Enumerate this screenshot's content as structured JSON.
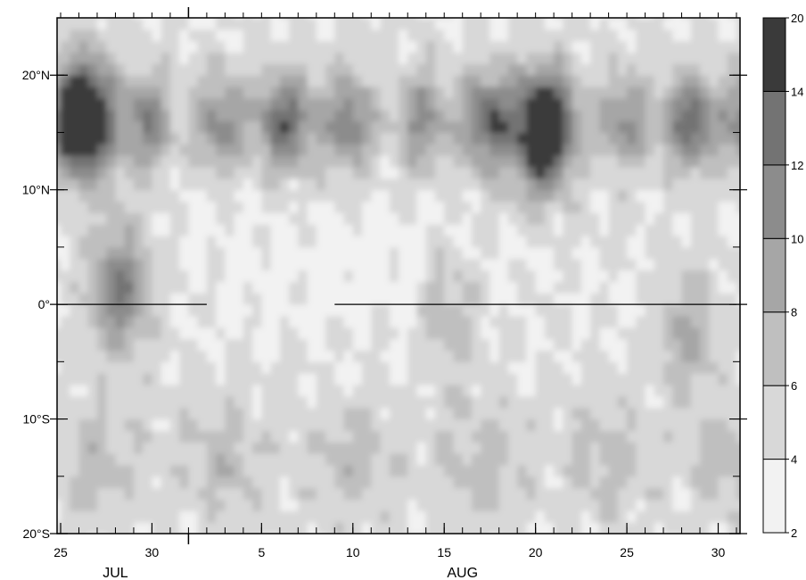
{
  "chart_data": {
    "type": "heatmap",
    "title": "",
    "xlabel": "",
    "ylabel": "",
    "x_axis": {
      "type": "date",
      "start": "Jul 25",
      "end": "Aug 31",
      "tick_labels": [
        {
          "day": "Jul 25",
          "label": "25"
        },
        {
          "day": "Jul 30",
          "label": "30"
        },
        {
          "day": "Aug 5",
          "label": "5"
        },
        {
          "day": "Aug 10",
          "label": "10"
        },
        {
          "day": "Aug 15",
          "label": "15"
        },
        {
          "day": "Aug 20",
          "label": "20"
        },
        {
          "day": "Aug 25",
          "label": "25"
        },
        {
          "day": "Aug 30",
          "label": "30"
        }
      ],
      "month_labels": [
        "JUL",
        "AUG"
      ],
      "month_boundary": "Aug 1"
    },
    "y_axis": {
      "range": [
        -20,
        25
      ],
      "ticks": [
        {
          "value": 20,
          "label": "20°N"
        },
        {
          "value": 10,
          "label": "10°N"
        },
        {
          "value": 0,
          "label": "0°"
        },
        {
          "value": -10,
          "label": "10°S"
        },
        {
          "value": -20,
          "label": "20°S"
        }
      ]
    },
    "colorbar": {
      "levels": [
        2,
        4,
        6,
        8,
        10,
        12,
        14,
        20
      ],
      "labels": [
        "2",
        "4",
        "6",
        "8",
        "10",
        "12",
        "14",
        "20"
      ],
      "colors": [
        "#f2f2f2",
        "#d8d8d8",
        "#bfbfbf",
        "#a6a6a6",
        "#8c8c8c",
        "#737373",
        "#3a3a3a"
      ]
    },
    "reference_line": {
      "latitude": 0,
      "segments": [
        [
          "Jul 25",
          "Aug 2"
        ],
        [
          "Aug 9",
          "Aug 31"
        ]
      ]
    },
    "features": [
      {
        "lat_center": 15.5,
        "lat_halfwidth": 5,
        "value": 11.5,
        "note_days": "Jul 25 - Aug 31"
      },
      {
        "center": [
          "Jul 28",
          1
        ],
        "value": 13
      },
      {
        "center": [
          "Aug 20",
          14
        ],
        "value": 14.5
      },
      {
        "center": [
          "Jul 26",
          16
        ],
        "value": 13.5
      },
      {
        "center": [
          "Aug 15",
          -1
        ],
        "value": 9
      },
      {
        "center": [
          "Aug 28",
          -3
        ],
        "value": 9
      }
    ]
  }
}
